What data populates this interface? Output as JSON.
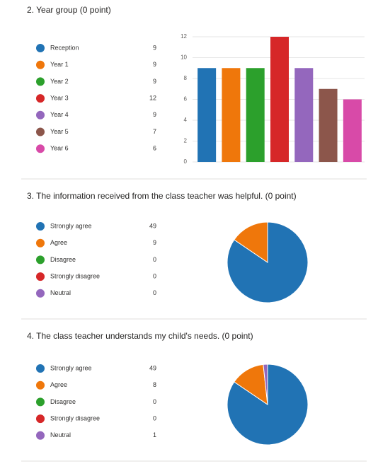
{
  "chart_data": [
    {
      "type": "bar",
      "title": "2. Year group (0 point)",
      "categories": [
        "Reception",
        "Year 1",
        "Year 2",
        "Year 3",
        "Year 4",
        "Year 5",
        "Year 6"
      ],
      "values": [
        9,
        9,
        9,
        12,
        9,
        7,
        6
      ],
      "colors": [
        "#2173b4",
        "#ef770b",
        "#2ca02c",
        "#d62728",
        "#9467bd",
        "#8c564b",
        "#d84aa8"
      ],
      "ylim": [
        0,
        12
      ],
      "yticks": [
        0,
        2,
        4,
        6,
        8,
        10,
        12
      ],
      "grid": true
    },
    {
      "type": "pie",
      "title": "3. The information received from the class teacher was helpful. (0 point)",
      "categories": [
        "Strongly agree",
        "Agree",
        "Disagree",
        "Strongly disagree",
        "Neutral"
      ],
      "values": [
        49,
        9,
        0,
        0,
        0
      ],
      "colors": [
        "#2173b4",
        "#ef770b",
        "#2ca02c",
        "#d62728",
        "#9467bd"
      ]
    },
    {
      "type": "pie",
      "title": "4. The class teacher understands my child's needs. (0 point)",
      "categories": [
        "Strongly agree",
        "Agree",
        "Disagree",
        "Strongly disagree",
        "Neutral"
      ],
      "values": [
        49,
        8,
        0,
        0,
        1
      ],
      "colors": [
        "#2173b4",
        "#ef770b",
        "#2ca02c",
        "#d62728",
        "#9467bd"
      ]
    }
  ]
}
